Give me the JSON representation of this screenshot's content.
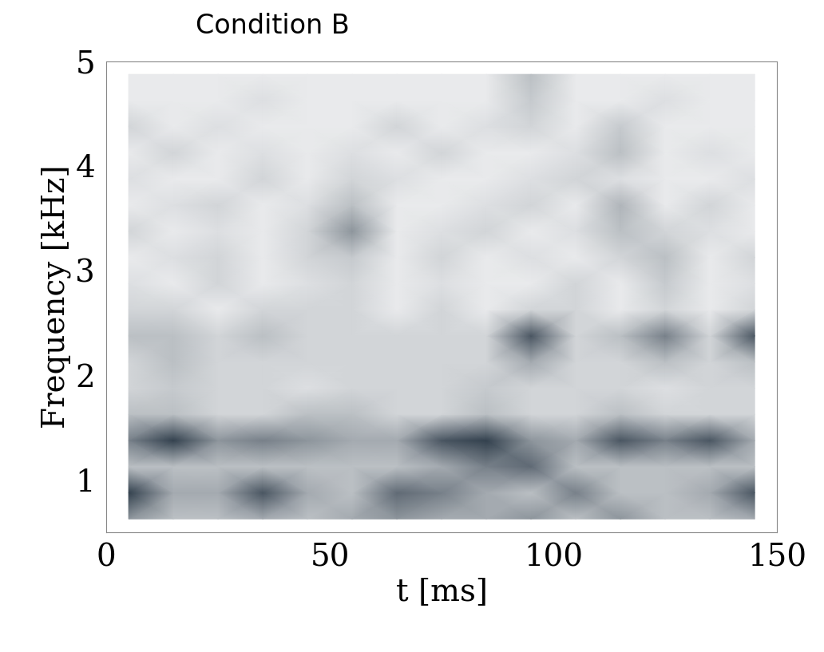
{
  "chart_data": {
    "type": "heatmap",
    "title": "Condition B",
    "x_label": "t [ms]",
    "y_label": "Frequency [kHz]",
    "x": [
      5,
      15,
      25,
      35,
      45,
      55,
      65,
      75,
      85,
      95,
      105,
      115,
      125,
      135,
      145
    ],
    "y": [
      0.625,
      0.875,
      1.125,
      1.375,
      1.625,
      1.875,
      2.125,
      2.375,
      2.625,
      2.875,
      3.125,
      3.375,
      3.625,
      3.875,
      4.125,
      4.375,
      4.625,
      4.875
    ],
    "cells": [
      [
        0.5,
        0.3,
        0.3,
        0.4,
        0.3,
        0.4,
        0.5,
        0.4,
        0.4,
        0.5,
        0.3,
        0.5,
        0.3,
        0.3,
        0.4
      ],
      [
        0.9,
        0.4,
        0.4,
        0.8,
        0.4,
        0.3,
        0.7,
        0.6,
        0.4,
        0.3,
        0.6,
        0.3,
        0.3,
        0.4,
        0.8
      ],
      [
        0.3,
        0.3,
        0.3,
        0.3,
        0.3,
        0.3,
        0.3,
        0.4,
        0.6,
        0.7,
        0.3,
        0.3,
        0.3,
        0.3,
        0.3
      ],
      [
        0.6,
        0.9,
        0.5,
        0.6,
        0.5,
        0.4,
        0.4,
        0.8,
        0.9,
        0.5,
        0.4,
        0.8,
        0.6,
        0.8,
        0.4
      ],
      [
        0.3,
        0.3,
        0.2,
        0.2,
        0.3,
        0.3,
        0.2,
        0.2,
        0.3,
        0.2,
        0.2,
        0.3,
        0.2,
        0.2,
        0.2
      ],
      [
        0.2,
        0.25,
        0.2,
        0.2,
        0.15,
        0.2,
        0.2,
        0.2,
        0.25,
        0.2,
        0.2,
        0.2,
        0.15,
        0.2,
        0.2
      ],
      [
        0.2,
        0.3,
        0.2,
        0.2,
        0.2,
        0.2,
        0.2,
        0.2,
        0.2,
        0.4,
        0.2,
        0.2,
        0.3,
        0.2,
        0.3
      ],
      [
        0.3,
        0.3,
        0.2,
        0.3,
        0.2,
        0.2,
        0.2,
        0.2,
        0.2,
        0.8,
        0.2,
        0.3,
        0.6,
        0.2,
        0.8
      ],
      [
        0.2,
        0.2,
        0.1,
        0.2,
        0.2,
        0.2,
        0.1,
        0.2,
        0.1,
        0.2,
        0.2,
        0.1,
        0.2,
        0.1,
        0.2
      ],
      [
        0.15,
        0.1,
        0.2,
        0.1,
        0.15,
        0.2,
        0.1,
        0.15,
        0.1,
        0.1,
        0.2,
        0.1,
        0.25,
        0.1,
        0.15
      ],
      [
        0.1,
        0.15,
        0.2,
        0.1,
        0.2,
        0.25,
        0.1,
        0.2,
        0.1,
        0.15,
        0.1,
        0.2,
        0.3,
        0.1,
        0.2
      ],
      [
        0.2,
        0.1,
        0.15,
        0.1,
        0.2,
        0.5,
        0.1,
        0.15,
        0.2,
        0.1,
        0.15,
        0.3,
        0.2,
        0.15,
        0.1
      ],
      [
        0.1,
        0.15,
        0.2,
        0.1,
        0.15,
        0.3,
        0.1,
        0.1,
        0.15,
        0.2,
        0.1,
        0.35,
        0.1,
        0.2,
        0.1
      ],
      [
        0.15,
        0.1,
        0.1,
        0.2,
        0.1,
        0.2,
        0.15,
        0.1,
        0.1,
        0.15,
        0.2,
        0.15,
        0.1,
        0.1,
        0.15
      ],
      [
        0.1,
        0.2,
        0.1,
        0.15,
        0.1,
        0.15,
        0.1,
        0.2,
        0.1,
        0.1,
        0.15,
        0.3,
        0.1,
        0.15,
        0.1
      ],
      [
        0.2,
        0.1,
        0.15,
        0.1,
        0.1,
        0.1,
        0.2,
        0.1,
        0.15,
        0.2,
        0.1,
        0.25,
        0.1,
        0.1,
        0.1
      ],
      [
        0.1,
        0.1,
        0.1,
        0.15,
        0.1,
        0.1,
        0.1,
        0.1,
        0.1,
        0.25,
        0.1,
        0.1,
        0.15,
        0.1,
        0.1
      ],
      [
        0.1,
        0.1,
        0.1,
        0.1,
        0.1,
        0.1,
        0.1,
        0.1,
        0.1,
        0.3,
        0.1,
        0.1,
        0.1,
        0.1,
        0.1
      ]
    ],
    "color_range": [
      0,
      1
    ],
    "color": "#1c2b3a",
    "xlim": [
      0,
      150
    ],
    "xticks": [
      0,
      50,
      100,
      150
    ],
    "ylim": [
      0.5,
      5
    ],
    "yticks": [
      1,
      2,
      3,
      4,
      5
    ]
  }
}
